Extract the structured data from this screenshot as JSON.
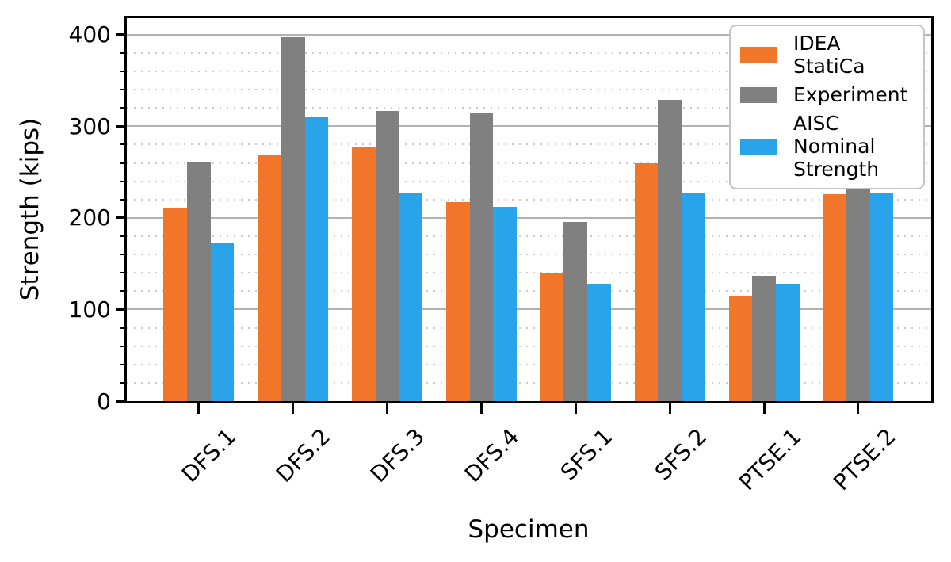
{
  "figure": {
    "background_color": "#ffffff",
    "frame_color": "#000000",
    "major_grid_color": "#b2b2b2",
    "minor_grid_color": "#cccccc"
  },
  "chart_data": {
    "type": "bar",
    "title": "",
    "xlabel": "Specimen",
    "ylabel": "Strength (kips)",
    "categories": [
      "DFS.1",
      "DFS.2",
      "DFS.3",
      "DFS.4",
      "SFS.1",
      "SFS.2",
      "PTSE.1",
      "PTSE.2"
    ],
    "series": [
      {
        "name": "IDEA StatiCa",
        "legend_label": "IDEA StatiCa",
        "color": "#f2762a",
        "values": [
          210,
          268,
          278,
          217,
          139,
          260,
          114,
          226
        ]
      },
      {
        "name": "Experiment",
        "legend_label": "Experiment",
        "color": "#808080",
        "values": [
          261,
          397,
          317,
          315,
          196,
          329,
          137,
          265
        ]
      },
      {
        "name": "AISC Nominal Strength",
        "legend_label": "AISC Nominal\nStrength",
        "color": "#29a3ea",
        "values": [
          173,
          310,
          227,
          212,
          128,
          227,
          128,
          227
        ]
      }
    ],
    "ylim": [
      0,
      418
    ],
    "yticks": [
      0,
      100,
      200,
      300,
      400
    ],
    "ytick_labels": [
      "0",
      "100",
      "200",
      "300",
      "400"
    ],
    "minor_tick_step": 20,
    "grid": "major solid horizontal, minor dotted horizontal",
    "legend_position": "upper right"
  }
}
